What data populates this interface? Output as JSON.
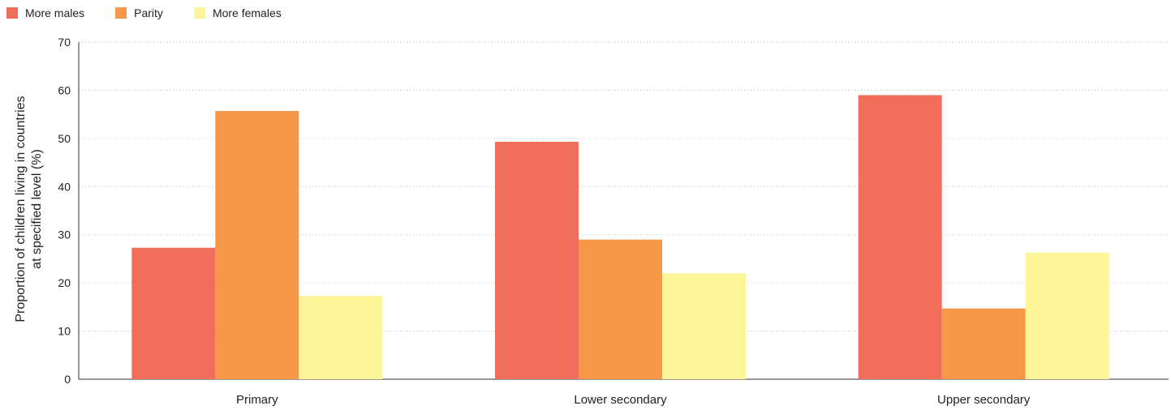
{
  "chart_data": {
    "type": "bar",
    "categories": [
      "Primary",
      "Lower secondary",
      "Upper secondary"
    ],
    "series": [
      {
        "name": "More males",
        "color": "#f06e5a",
        "values": [
          27.3,
          49.3,
          59.0
        ]
      },
      {
        "name": "Parity",
        "color": "#f69749",
        "values": [
          55.7,
          29.0,
          14.7
        ]
      },
      {
        "name": "More females",
        "color": "#fcf59a",
        "values": [
          17.3,
          22.0,
          26.3
        ]
      }
    ],
    "ylabel_lines": [
      "Proportion of children living in countries",
      "at specified level (%)"
    ],
    "xlabel": "",
    "ylim": [
      0,
      70
    ],
    "yticks": [
      0,
      10,
      20,
      30,
      40,
      50,
      60,
      70
    ],
    "grid": true,
    "legend_position": "top-left"
  }
}
